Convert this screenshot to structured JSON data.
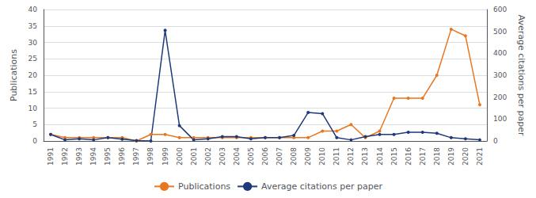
{
  "chart_data": {
    "type": "line",
    "categories": [
      "1991",
      "1992",
      "1993",
      "1994",
      "1995",
      "1996",
      "1997",
      "1998",
      "1999",
      "2000",
      "2001",
      "2002",
      "2003",
      "2004",
      "2005",
      "2006",
      "2007",
      "2008",
      "2009",
      "2010",
      "2011",
      "2012",
      "2013",
      "2014",
      "2015",
      "2016",
      "2017",
      "2018",
      "2019",
      "2020",
      "2021"
    ],
    "series": [
      {
        "name": "Publications",
        "color": "#E87722",
        "marker": "circle",
        "values": [
          2,
          1,
          1,
          1,
          1,
          1,
          0,
          2,
          2,
          1,
          1,
          1,
          1,
          1,
          1,
          1,
          1,
          1,
          1,
          3,
          3,
          5,
          1,
          3,
          13,
          13,
          13,
          20,
          34,
          32,
          11
        ]
      },
      {
        "name": "Average citations per paper",
        "color": "#1F3A7A",
        "marker": "circle",
        "axis": "y2",
        "values": [
          30,
          5,
          10,
          5,
          15,
          8,
          2,
          0,
          505,
          70,
          5,
          10,
          20,
          20,
          10,
          15,
          15,
          25,
          130,
          125,
          15,
          5,
          20,
          30,
          30,
          40,
          40,
          35,
          15,
          10,
          5
        ]
      }
    ],
    "ylabel": "Publications",
    "y2label": "Average citations per paper",
    "ylim": [
      0,
      40
    ],
    "yticks": [
      0,
      5,
      10,
      15,
      20,
      25,
      30,
      35,
      40
    ],
    "y2lim": [
      0,
      600
    ],
    "y2ticks": [
      0,
      100,
      200,
      300,
      400,
      500,
      600
    ],
    "grid": true,
    "legend": "bottom"
  }
}
